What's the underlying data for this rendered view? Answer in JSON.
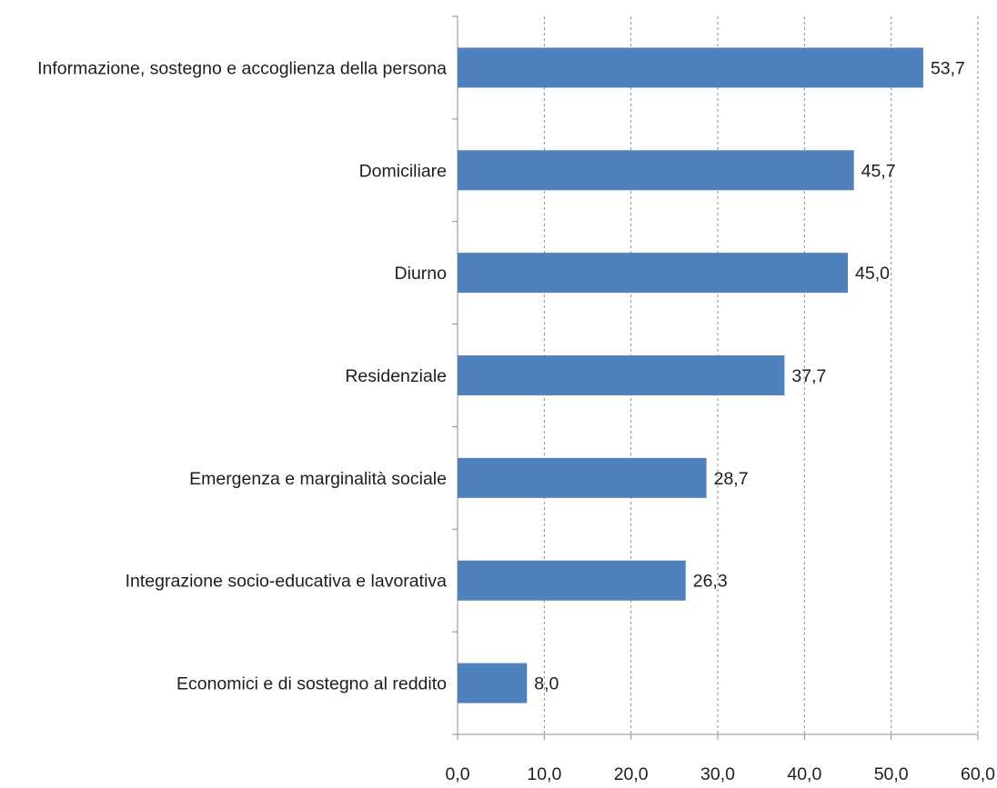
{
  "chart_data": {
    "type": "bar",
    "orientation": "horizontal",
    "categories": [
      "Informazione, sostegno e accoglienza della persona",
      "Domiciliare",
      "Diurno",
      "Residenziale",
      "Emergenza e marginalità sociale",
      "Integrazione socio-educativa e lavorativa",
      "Economici e di sostegno al reddito"
    ],
    "values": [
      53.7,
      45.7,
      45.0,
      37.7,
      28.7,
      26.3,
      8.0
    ],
    "value_labels": [
      "53,7",
      "45,7",
      "45,0",
      "37,7",
      "28,7",
      "26,3",
      "8,0"
    ],
    "xlim": [
      0,
      60
    ],
    "xticks": [
      0,
      10,
      20,
      30,
      40,
      50,
      60
    ],
    "xtick_labels": [
      "0,0",
      "10,0",
      "20,0",
      "30,0",
      "40,0",
      "50,0",
      "60,0"
    ],
    "grid": "vertical dashed",
    "bar_color": "#4f81bd",
    "title": "",
    "xlabel": "",
    "ylabel": ""
  }
}
